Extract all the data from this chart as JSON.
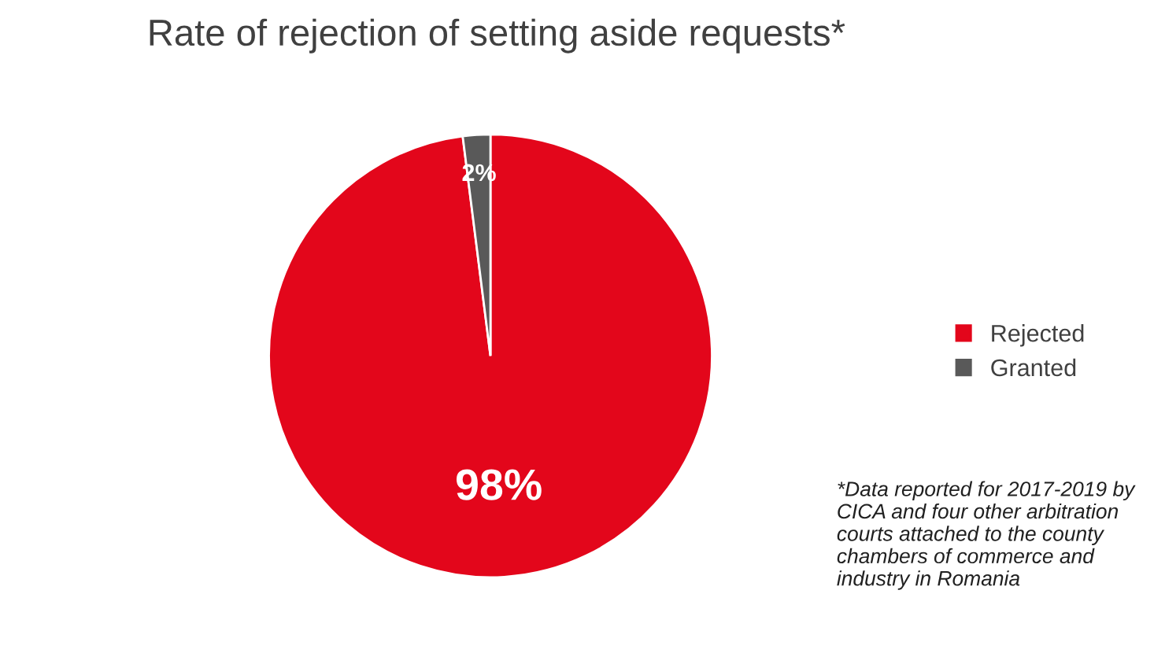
{
  "chart_data": {
    "type": "pie",
    "title": "Rate of rejection of setting aside requests*",
    "categories": [
      "Rejected",
      "Granted"
    ],
    "values": [
      98,
      2
    ],
    "colors": [
      "#e3061b",
      "#595959"
    ],
    "value_labels": [
      "98%",
      "2%"
    ],
    "legend": "right",
    "annotations": [
      "*Data reported for 2017-2019 by CICA and four other arbitration courts attached to the county chambers of commerce and industry in Romania"
    ]
  }
}
